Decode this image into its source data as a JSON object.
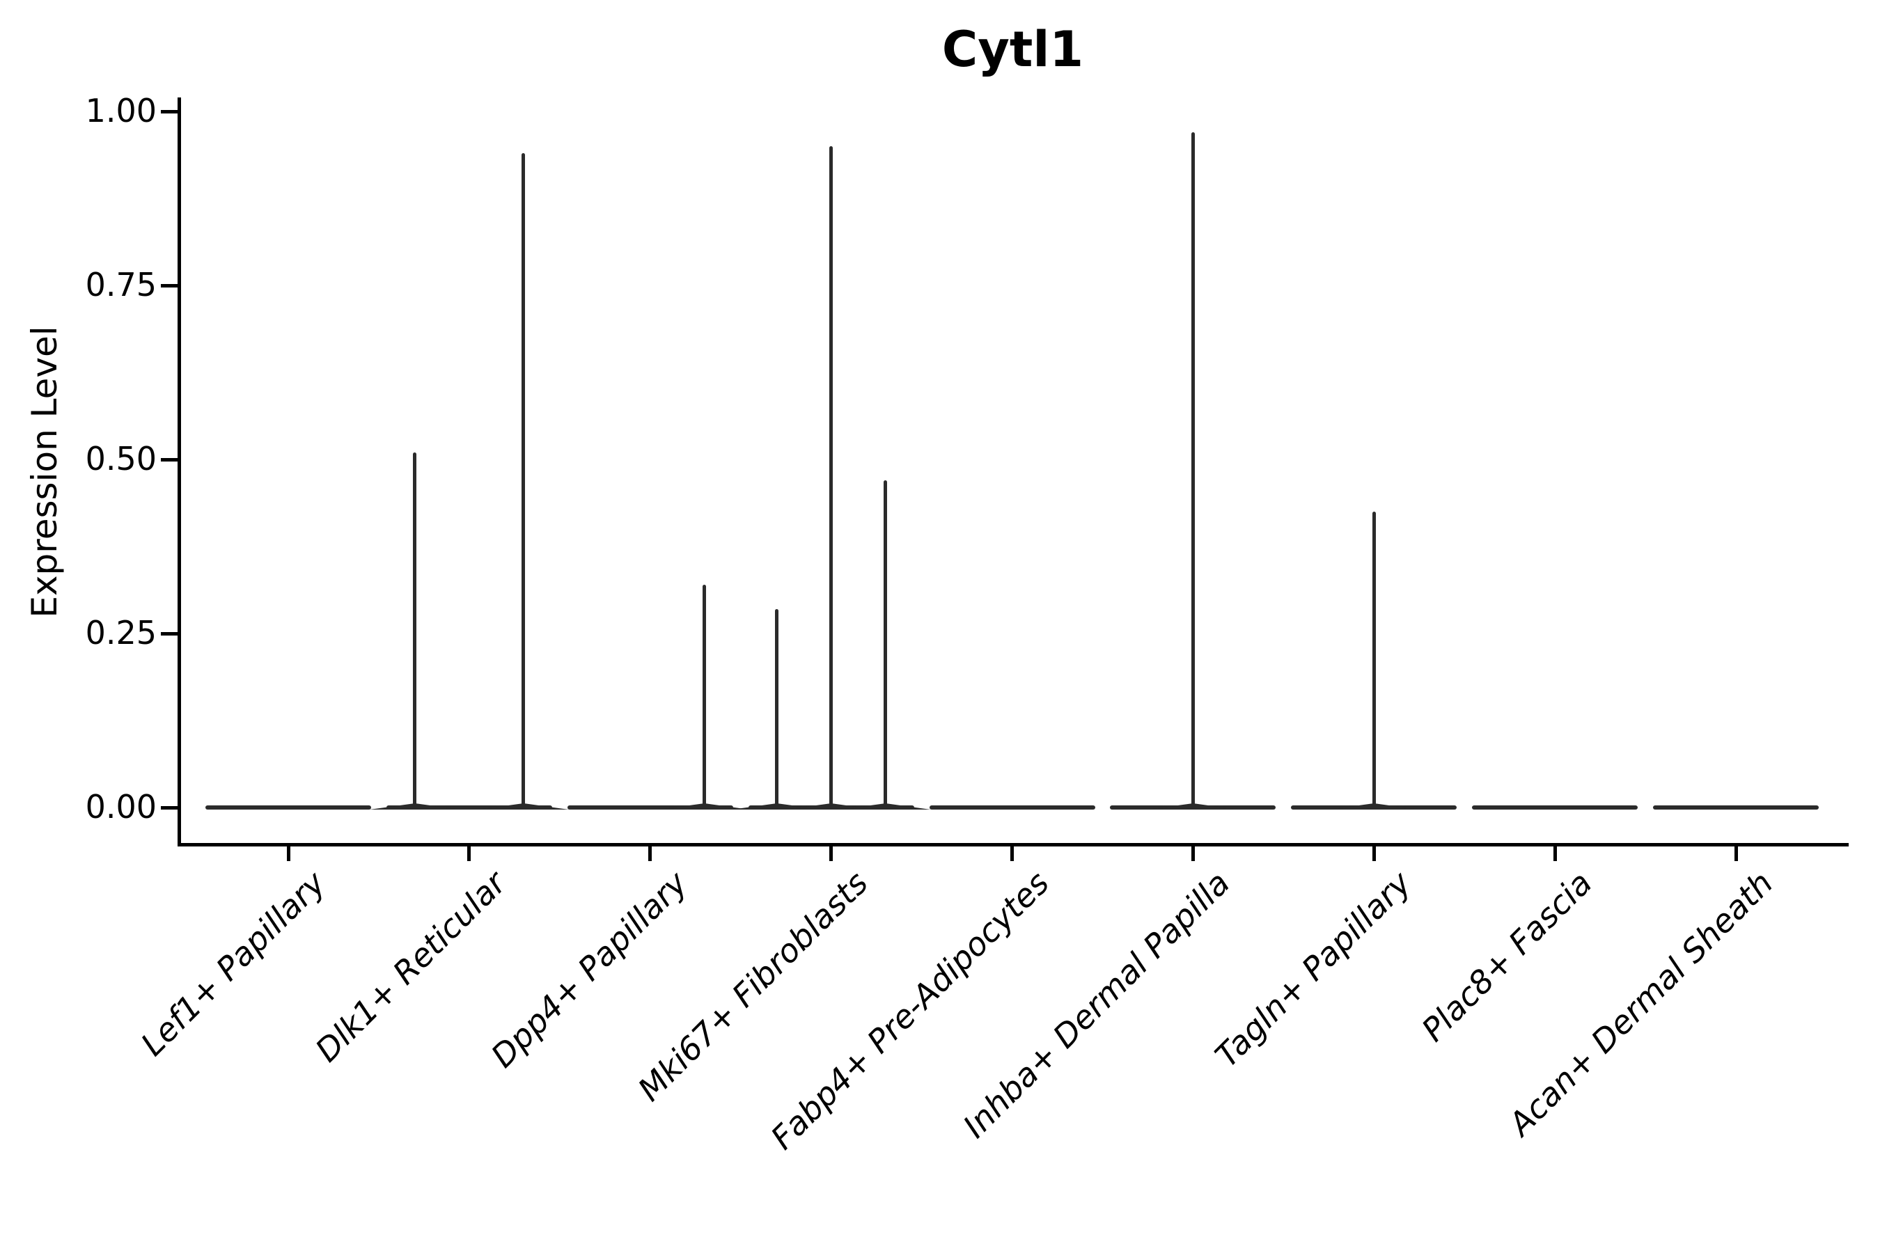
{
  "title": "Cytl1",
  "y_axis": {
    "label": "Expression Level",
    "tick_labels": [
      "1.00",
      "0.75",
      "0.50",
      "0.25",
      "0.00"
    ]
  },
  "chart_data": {
    "type": "violin",
    "title": "Cytl1",
    "xlabel": "",
    "ylabel": "Expression Level",
    "ylim": [
      0,
      1
    ],
    "yticks": [
      1.0,
      0.75,
      0.5,
      0.25,
      0.0
    ],
    "ytick_labels": [
      "1.00",
      "0.75",
      "0.50",
      "0.25",
      "0.00"
    ],
    "grid": false,
    "legend": null,
    "categories": [
      "Lef1+ Papillary",
      "Dlk1+ Reticular",
      "Dpp4+ Papillary",
      "Mki67+ Fibroblasts",
      "Fabp4+ Pre-Adipocytes",
      "Inhba+ Dermal Papilla",
      "Tagln+ Papillary",
      "Plac8+ Fascia",
      "Acan+ Dermal Sheath"
    ],
    "violins": [
      {
        "category": "Lef1+ Papillary",
        "baseline_value": 0,
        "spikes": []
      },
      {
        "category": "Dlk1+ Reticular",
        "baseline_value": 0,
        "spikes": [
          {
            "offset": -0.3,
            "value": 0.51
          },
          {
            "offset": 0.3,
            "value": 0.94
          }
        ]
      },
      {
        "category": "Dpp4+ Papillary",
        "baseline_value": 0,
        "spikes": [
          {
            "offset": 0.3,
            "value": 0.32
          }
        ]
      },
      {
        "category": "Mki67+ Fibroblasts",
        "baseline_value": 0,
        "spikes": [
          {
            "offset": -0.3,
            "value": 0.285
          },
          {
            "offset": 0,
            "value": 0.95
          },
          {
            "offset": 0.3,
            "value": 0.47
          }
        ]
      },
      {
        "category": "Fabp4+ Pre-Adipocytes",
        "baseline_value": 0,
        "spikes": []
      },
      {
        "category": "Inhba+ Dermal Papilla",
        "baseline_value": 0,
        "spikes": [
          {
            "offset": 0,
            "value": 0.97
          }
        ]
      },
      {
        "category": "Tagln+ Papillary",
        "baseline_value": 0,
        "spikes": [
          {
            "offset": 0,
            "value": 0.425
          }
        ]
      },
      {
        "category": "Plac8+ Fascia",
        "baseline_value": 0,
        "spikes": []
      },
      {
        "category": "Acan+ Dermal Sheath",
        "baseline_value": 0,
        "spikes": []
      }
    ],
    "style": {
      "violin_color": "#2b2b2b",
      "axis_color": "#000000",
      "background": "#ffffff"
    }
  }
}
